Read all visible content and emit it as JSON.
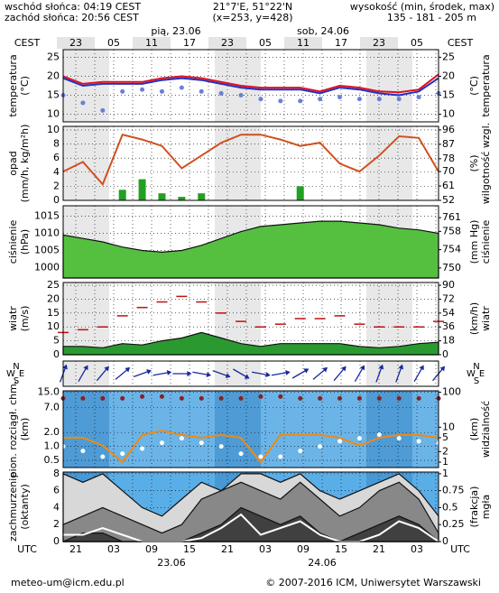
{
  "header": {
    "sunrise": "wschód słońca: 04:19 CEST",
    "sunset": "zachód słońca: 20:56 CEST",
    "coords": "21°7'E, 51°22'N",
    "grid_point": "(x=253, y=428)",
    "height_title": "wysokość (min, środek, max)",
    "height_values": "135 - 181 - 205 m",
    "day1": "pią, 23.06",
    "day2": "sob, 24.06"
  },
  "time_axis": {
    "zone_top": "CEST",
    "zone_bottom": "UTC",
    "top_labels": [
      "23",
      "05",
      "11",
      "17",
      "23",
      "05",
      "11",
      "17",
      "23",
      "05"
    ],
    "bottom_labels": [
      "21",
      "03",
      "09",
      "15",
      "21",
      "03",
      "09",
      "15",
      "21",
      "03"
    ],
    "date1": "23.06",
    "date2": "24.06"
  },
  "footer": {
    "email": "meteo-um@icm.edu.pl",
    "copyright": "© 2007-2016 ICM, Uniwersytet Warszawski"
  },
  "chart_data": [
    {
      "type": "line",
      "ylabel": [
        "temperatura",
        "(°C)"
      ],
      "y2label": [
        "(°C)",
        "temperatura"
      ],
      "ylim": [
        8,
        27
      ],
      "yticks": [
        10,
        15,
        20,
        25
      ],
      "y2lim": [
        8,
        27
      ],
      "y2ticks": [
        10,
        15,
        20,
        25
      ],
      "grid": true,
      "background": "#ffffff",
      "series": [
        {
          "style": "dots",
          "color": "#6a7fd8",
          "values": [
            15,
            13,
            11,
            16,
            16.5,
            16,
            17,
            16,
            15.5,
            15,
            14,
            13.5,
            13.5,
            14,
            14.5,
            14,
            14,
            14,
            14.5,
            15.5
          ]
        },
        {
          "style": "line",
          "color": "#2030c0",
          "values": [
            19.5,
            17.5,
            18,
            18,
            18,
            19,
            19.5,
            19,
            18,
            17,
            16.5,
            16.5,
            16.5,
            15.5,
            17,
            16.5,
            15.5,
            15,
            16,
            19.5
          ]
        },
        {
          "style": "line",
          "color": "#e01020",
          "values": [
            20,
            18,
            18.5,
            18.5,
            18.5,
            19.5,
            20,
            19.5,
            18.5,
            17.5,
            17,
            17,
            17,
            16,
            17.5,
            17,
            16,
            15.8,
            16.5,
            20.5
          ]
        }
      ]
    },
    {
      "type": "line",
      "ylabel": [
        "opad",
        "(mm/h, kg/m²h)"
      ],
      "y2label": [
        "(%)",
        "wilgotność wzgl."
      ],
      "ylim": [
        0,
        10.5
      ],
      "yticks": [
        0,
        2,
        4,
        6,
        8,
        10
      ],
      "y2lim": [
        52,
        98.2
      ],
      "y2ticks": [
        52,
        61,
        70,
        78,
        87,
        96
      ],
      "grid": true,
      "background": "#ffffff",
      "series": [
        {
          "style": "bars",
          "color": "#22a022",
          "values": [
            0,
            0,
            0,
            1.5,
            3,
            1,
            0.5,
            1,
            0,
            0,
            0,
            0,
            2,
            0,
            0,
            0,
            0,
            0,
            0,
            0
          ]
        },
        {
          "style": "line",
          "axis": "y2",
          "color": "#d05020",
          "values": [
            70,
            76,
            62,
            93,
            90,
            86,
            72,
            80,
            88,
            93,
            93,
            90,
            86,
            88,
            75,
            70,
            80,
            92,
            91,
            70
          ]
        }
      ]
    },
    {
      "type": "area",
      "ylabel": [
        "ciśnienie",
        "(hPa)"
      ],
      "y2label": [
        "(mm Hg)",
        "ciśnienie"
      ],
      "ylim": [
        997,
        1018
      ],
      "yticks": [
        1000,
        1005,
        1010,
        1015
      ],
      "y2lim": [
        747.8,
        763.6
      ],
      "y2ticks": [
        750,
        754,
        758,
        761
      ],
      "grid": true,
      "background": "#ffffff",
      "series": [
        {
          "style": "area",
          "color": "#55c040",
          "values": [
            1009.5,
            1008.5,
            1007.5,
            1006,
            1005,
            1004.5,
            1005,
            1006.5,
            1008.5,
            1010.5,
            1012,
            1012.5,
            1013,
            1013.5,
            1013.5,
            1013,
            1012.5,
            1011.5,
            1011,
            1010
          ]
        }
      ]
    },
    {
      "type": "line",
      "ylabel": [
        "wiatr",
        "(m/s)"
      ],
      "y2label": [
        "(km/h)",
        "wiatr"
      ],
      "ylim": [
        0,
        26
      ],
      "yticks": [
        0,
        5,
        10,
        15,
        20,
        25
      ],
      "y2lim": [
        0,
        93.6
      ],
      "y2ticks": [
        0,
        18,
        36,
        54,
        72,
        90
      ],
      "grid": true,
      "background": "#ffffff",
      "series": [
        {
          "style": "area",
          "color": "#2a9a30",
          "values": [
            3,
            3,
            2.5,
            4,
            3.5,
            5,
            6,
            8,
            6,
            4,
            3,
            4,
            4,
            4,
            4,
            3,
            2.5,
            3,
            4,
            4.5
          ]
        },
        {
          "style": "dashes",
          "color": "#c01010",
          "values": [
            8,
            9,
            10,
            14,
            17,
            19,
            21,
            19,
            15,
            12,
            10,
            11,
            13,
            13,
            14,
            11,
            10,
            10,
            10,
            12
          ]
        }
      ]
    },
    {
      "type": "wind_direction",
      "compass": [
        "N",
        "W",
        "E",
        "S"
      ],
      "color": "#1a2a9a",
      "values": [
        200,
        210,
        220,
        230,
        250,
        260,
        270,
        280,
        290,
        300,
        280,
        260,
        240,
        230,
        220,
        210,
        200,
        200,
        210,
        220
      ]
    },
    {
      "type": "line",
      "ylabel": [
        "pion. rozciągł. chm.",
        "(km)"
      ],
      "y2label": [
        "(km)",
        "widzialność"
      ],
      "log": true,
      "ylim": [
        0.35,
        16
      ],
      "yticks": [
        0.5,
        {
          "value": 1,
          "label": "1.0"
        },
        {
          "value": 2,
          "label": "2.0"
        },
        {
          "value": 7,
          "label": "7.0"
        },
        {
          "value": 15,
          "label": "15.0"
        }
      ],
      "y2lim": [
        0.7,
        110
      ],
      "y2ticks": [
        1,
        2,
        5,
        10,
        100
      ],
      "grid": true,
      "background": "#6bb4e8",
      "series": [
        {
          "style": "dots",
          "color": "#8a2020",
          "values": [
            11,
            11,
            11,
            11,
            12,
            12,
            11,
            11,
            11,
            11,
            12,
            12,
            11,
            11,
            11,
            11,
            11,
            11,
            11,
            11
          ]
        },
        {
          "style": "dots",
          "color": "#ffffff",
          "values": [
            1,
            0.8,
            0.6,
            0.7,
            0.9,
            1.2,
            1.5,
            1.2,
            1,
            0.7,
            0.6,
            0.6,
            0.8,
            1,
            1.3,
            1.5,
            1.8,
            1.5,
            1.3,
            1.2
          ]
        },
        {
          "style": "line",
          "axis": "y2",
          "color": "#f08a10",
          "values": [
            5,
            5,
            3,
            1,
            6,
            8,
            6,
            5,
            6,
            5,
            1,
            6,
            6,
            6,
            5,
            3,
            5,
            6,
            6,
            5
          ]
        }
      ]
    },
    {
      "type": "area",
      "ylabel": [
        "zachmurzenie",
        "(oktanty)"
      ],
      "y2label": [
        "(frakcja)",
        "mgła"
      ],
      "ylim": [
        0,
        8.2
      ],
      "yticks": [
        0,
        2,
        4,
        6,
        8
      ],
      "y2lim": [
        0,
        1.025
      ],
      "y2ticks": [
        0,
        0.25,
        0.5,
        0.75,
        1
      ],
      "grid": true,
      "background": "#5aaee8",
      "series": [
        {
          "style": "area",
          "color": "#d8d8d8",
          "values": [
            8,
            7,
            8,
            6,
            4,
            3,
            5,
            7,
            6,
            8,
            8,
            7,
            8,
            6,
            5,
            6,
            7,
            8,
            6,
            3
          ]
        },
        {
          "style": "area",
          "color": "#888888",
          "values": [
            2,
            3,
            4,
            3,
            2,
            1,
            2,
            5,
            6,
            7,
            6,
            5,
            7,
            5,
            3,
            4,
            6,
            7,
            5,
            1
          ]
        },
        {
          "style": "area",
          "color": "#404040",
          "values": [
            0,
            1,
            1,
            0,
            0,
            0,
            0,
            1,
            2,
            4,
            3,
            2,
            3,
            1,
            0,
            1,
            2,
            3,
            2,
            0
          ]
        },
        {
          "style": "line",
          "axis": "y2",
          "color": "#ffffff",
          "values": [
            0.1,
            0.1,
            0.2,
            0.1,
            0,
            0,
            0,
            0.05,
            0.2,
            0.4,
            0.1,
            0.2,
            0.3,
            0.1,
            0,
            0,
            0.1,
            0.3,
            0.2,
            0
          ]
        }
      ]
    }
  ]
}
